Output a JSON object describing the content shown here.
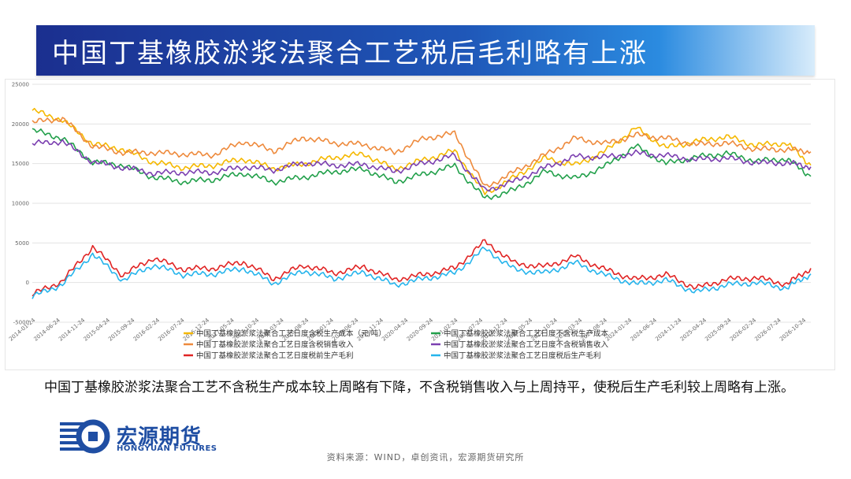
{
  "header": {
    "title": "中国丁基橡胶淤浆法聚合工艺税后毛利略有上涨"
  },
  "caption": "中国丁基橡胶淤浆法聚合工艺不含税生产成本较上周略有下降，不含税销售收入与上周持平，使税后生产毛利较上周略有上涨。",
  "logo": {
    "cn": "宏源期货",
    "en": "HONGYUAN FUTURES"
  },
  "source": "资料来源：WIND，卓创资讯，宏源期货研究所",
  "chart_data": {
    "type": "line",
    "ylim": [
      -5000,
      25000
    ],
    "yticks": [
      "25000",
      "20000",
      "15000",
      "10000",
      "5000",
      "0",
      "-5000"
    ],
    "ytick_values": [
      25000,
      20000,
      15000,
      10000,
      5000,
      0,
      -5000
    ],
    "xticks": [
      "2014-01-24",
      "2014-06-24",
      "2014-11-24",
      "2015-04-24",
      "2015-09-24",
      "2016-02-24",
      "2016-07-24",
      "2016-12-24",
      "2017-05-24",
      "2017-10-24",
      "2018-03-24",
      "2018-08-24",
      "2019-01-24",
      "2019-06-24",
      "2019-11-24",
      "2020-04-24",
      "2020-09-24",
      "2021-02-24",
      "2021-07-24",
      "2021-12-24",
      "2022-05-24",
      "2022-10-24",
      "2023-03-24",
      "2023-08-24",
      "2024-01-24",
      "2024-06-24",
      "2024-11-24",
      "2025-04-24",
      "2025-09-24",
      "2026-02-24",
      "2026-07-24",
      "2026-10-24"
    ],
    "x": [
      2014.0,
      2014.5,
      2015.0,
      2015.5,
      2016.0,
      2016.5,
      2017.0,
      2017.5,
      2018.0,
      2018.5,
      2019.0,
      2019.5,
      2020.0,
      2020.5,
      2021.0,
      2021.5,
      2022.0,
      2022.5,
      2023.0,
      2023.5,
      2024.0,
      2024.5,
      2025.0,
      2025.5,
      2026.0,
      2026.5,
      2026.9
    ],
    "xlim": [
      2014.0,
      2026.9
    ],
    "series": [
      {
        "name": "中国丁基橡胶淤浆法聚合工艺日度含税生产成本（元/吨）",
        "color": "#f5b800",
        "values": [
          21700,
          20500,
          17500,
          16800,
          15200,
          14500,
          14800,
          15600,
          14400,
          15000,
          15800,
          16200,
          14300,
          15500,
          16600,
          11200,
          13300,
          15700,
          14800,
          16600,
          19500,
          17000,
          17800,
          18400,
          17300,
          17600,
          14800
        ]
      },
      {
        "name": "中国丁基橡胶淤浆法聚合工艺日度不含税生产成本",
        "color": "#22a04b",
        "values": [
          19200,
          18200,
          15200,
          14800,
          13300,
          12700,
          13000,
          13800,
          12700,
          13300,
          14000,
          14300,
          12700,
          13700,
          14700,
          10600,
          11700,
          14000,
          13100,
          14700,
          17200,
          15000,
          15800,
          16300,
          15300,
          15600,
          13400
        ]
      },
      {
        "name": "中国丁基橡胶淤浆法聚合工艺日度含税销售收入",
        "color": "#ee8a3c",
        "values": [
          20200,
          20700,
          17200,
          16400,
          16400,
          16200,
          16100,
          17800,
          16600,
          18300,
          17600,
          17400,
          16400,
          18200,
          18800,
          12000,
          14000,
          16100,
          18200,
          17500,
          18600,
          18200,
          17400,
          17600,
          16800,
          16800,
          16500
        ]
      },
      {
        "name": "中国丁基橡胶淤浆法聚合工艺日度不含税销售收入",
        "color": "#7b3fb0",
        "values": [
          17500,
          17800,
          15200,
          14500,
          13800,
          13900,
          13900,
          14600,
          14200,
          15100,
          14800,
          14900,
          14000,
          15100,
          16000,
          11600,
          12800,
          14500,
          15900,
          15800,
          16300,
          16000,
          15500,
          15700,
          15100,
          15100,
          14600
        ]
      },
      {
        "name": "中国丁基橡胶淤浆法聚合工艺日度税前生产毛利",
        "color": "#e02424",
        "values": [
          -1500,
          200,
          4500,
          900,
          3100,
          1700,
          1800,
          2600,
          500,
          2200,
          1200,
          2000,
          400,
          1000,
          1800,
          5200,
          2400,
          2000,
          3300,
          1600,
          400,
          1000,
          -700,
          400,
          600,
          -200,
          1800
        ]
      },
      {
        "name": "中国丁基橡胶淤浆法聚合工艺日度税后生产毛利",
        "color": "#25b4ec",
        "values": [
          -1800,
          -200,
          3600,
          300,
          2200,
          1000,
          1100,
          1800,
          -100,
          1500,
          500,
          1300,
          -300,
          500,
          1200,
          4300,
          1600,
          1200,
          2500,
          900,
          -200,
          300,
          -1200,
          -300,
          0,
          -700,
          1100
        ]
      }
    ]
  }
}
